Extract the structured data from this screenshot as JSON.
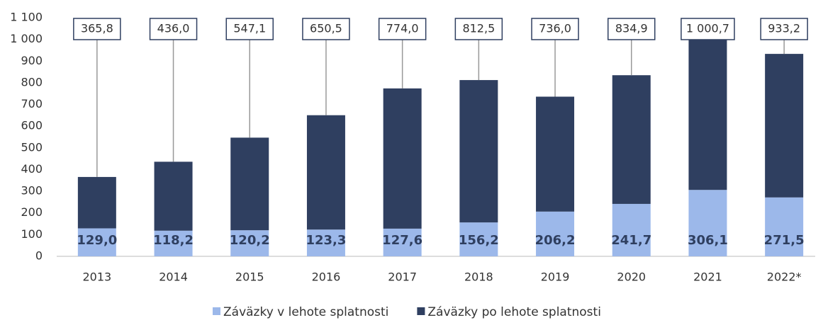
{
  "chart_data": {
    "type": "stacked-bar",
    "categories": [
      "2013",
      "2014",
      "2015",
      "2016",
      "2017",
      "2018",
      "2019",
      "2020",
      "2021",
      "2022*"
    ],
    "series": [
      {
        "name": "Záväzky v lehote splatnosti",
        "color": "#9cb8ea",
        "values": [
          129.0,
          118.2,
          120.2,
          123.3,
          127.6,
          156.2,
          206.2,
          241.7,
          306.1,
          271.5
        ],
        "value_labels": [
          "129,0",
          "118,2",
          "120,2",
          "123,3",
          "127,6",
          "156,2",
          "206,2",
          "241,7",
          "306,1",
          "271,5"
        ]
      },
      {
        "name": "Záväzky po lehote splatnosti",
        "color": "#2f3f60",
        "values": [
          236.8,
          317.8,
          426.9,
          527.2,
          646.4,
          656.3,
          529.8,
          593.2,
          694.6,
          661.7
        ]
      }
    ],
    "totals": [
      365.8,
      436.0,
      547.1,
      650.5,
      774.0,
      812.5,
      736.0,
      834.9,
      1000.7,
      933.2
    ],
    "total_labels": [
      "365,8",
      "436,0",
      "547,1",
      "650,5",
      "774,0",
      "812,5",
      "736,0",
      "834,9",
      "1 000,7",
      "933,2"
    ],
    "ylim": [
      0,
      1100
    ],
    "yticks": [
      0,
      100,
      200,
      300,
      400,
      500,
      600,
      700,
      800,
      900,
      {
        "value": 1000,
        "label": "1 000"
      },
      {
        "value": 1100,
        "label": "1 100"
      }
    ],
    "legend": "bottom"
  }
}
